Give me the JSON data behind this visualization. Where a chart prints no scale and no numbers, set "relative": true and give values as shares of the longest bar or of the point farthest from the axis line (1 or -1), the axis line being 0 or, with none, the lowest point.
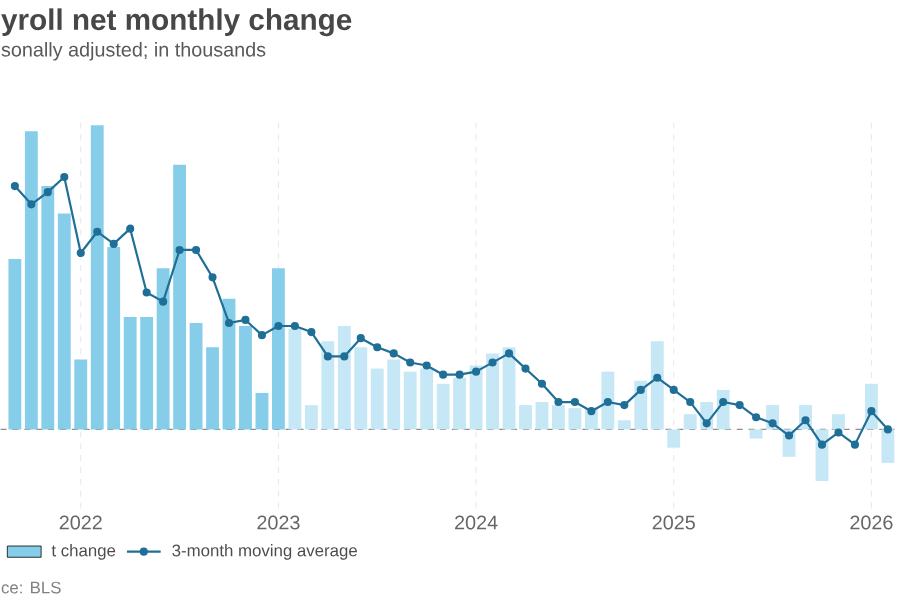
{
  "chart_data": {
    "type": "bar",
    "title": "yroll net monthly change",
    "subtitle": "sonally adjusted; in thousands",
    "annotations": [
      "ce: BLS"
    ],
    "relative": true,
    "grid": "x",
    "ref_lines": [
      {
        "axis": "y",
        "value": 0,
        "color": "#8c8c8c",
        "line_style": "dashed"
      }
    ],
    "legend": "bottom",
    "marker": "circle",
    "xlim": [
      "2021-08-05",
      "2026-02-13"
    ],
    "xticks": [
      {
        "value": "2022-01-01",
        "label": "2022"
      },
      {
        "value": "2023-01-01",
        "label": "2023"
      },
      {
        "value": "2024-01-01",
        "label": "2024"
      },
      {
        "value": "2025-01-01",
        "label": "2025"
      },
      {
        "value": "2026-01-01",
        "label": "2026"
      }
    ],
    "x": [
      "2021-09",
      "2021-10",
      "2021-11",
      "2021-12",
      "2022-01",
      "2022-02",
      "2022-03",
      "2022-04",
      "2022-05",
      "2022-06",
      "2022-07",
      "2022-08",
      "2022-09",
      "2022-10",
      "2022-11",
      "2022-12",
      "2023-01",
      "2023-02",
      "2023-03",
      "2023-04",
      "2023-05",
      "2023-06",
      "2023-07",
      "2023-08",
      "2023-09",
      "2023-10",
      "2023-11",
      "2023-12",
      "2024-01",
      "2024-02",
      "2024-03",
      "2024-04",
      "2024-05",
      "2024-06",
      "2024-07",
      "2024-08",
      "2024-09",
      "2024-10",
      "2024-11",
      "2024-12",
      "2025-01",
      "2025-02",
      "2025-03",
      "2025-04",
      "2025-05",
      "2025-06",
      "2025-07",
      "2025-08",
      "2025-09",
      "2025-10",
      "2025-11",
      "2025-12",
      "2026-01",
      "2026-02"
    ],
    "series": [
      {
        "name": "t change",
        "colors": [
          "#86cdea",
          "#86cdea",
          "#86cdea",
          "#86cdea",
          "#86cdea",
          "#86cdea",
          "#86cdea",
          "#86cdea",
          "#86cdea",
          "#86cdea",
          "#86cdea",
          "#86cdea",
          "#86cdea",
          "#86cdea",
          "#86cdea",
          "#86cdea",
          "#86cdea",
          "#c6e7f5",
          "#c6e7f5",
          "#c6e7f5",
          "#c6e7f5",
          "#c6e7f5",
          "#c6e7f5",
          "#c6e7f5",
          "#c6e7f5",
          "#c6e7f5",
          "#c6e7f5",
          "#c6e7f5",
          "#c6e7f5",
          "#c6e7f5",
          "#c6e7f5",
          "#c6e7f5",
          "#c6e7f5",
          "#c6e7f5",
          "#c6e7f5",
          "#c6e7f5",
          "#c6e7f5",
          "#c6e7f5",
          "#c6e7f5",
          "#c6e7f5",
          "#c6e7f5",
          "#c6e7f5",
          "#c6e7f5",
          "#c6e7f5",
          "#c6e7f5",
          "#c6e7f5",
          "#c6e7f5",
          "#c6e7f5",
          "#c6e7f5",
          "#c6e7f5",
          "#c6e7f5",
          "#c6e7f5",
          "#c6e7f5",
          "#c6e7f5"
        ],
        "values": [
          0.56,
          0.98,
          0.8,
          0.71,
          0.23,
          1.0,
          0.6,
          0.37,
          0.37,
          0.53,
          0.87,
          0.35,
          0.27,
          0.43,
          0.34,
          0.12,
          0.53,
          0.33,
          0.08,
          0.29,
          0.34,
          0.27,
          0.2,
          0.23,
          0.19,
          0.2,
          0.15,
          0.17,
          0.21,
          0.25,
          0.27,
          0.08,
          0.09,
          0.08,
          0.07,
          0.07,
          0.19,
          0.03,
          0.16,
          0.29,
          -0.06,
          0.05,
          0.09,
          0.13,
          null,
          -0.03,
          0.08,
          -0.09,
          0.08,
          -0.17,
          0.05,
          null,
          0.15,
          -0.11
        ]
      },
      {
        "name": "3-month moving average",
        "type": "line",
        "color": "#1f6f96",
        "values": [
          0.8,
          0.74,
          0.78,
          0.83,
          0.58,
          0.65,
          0.61,
          0.66,
          0.45,
          0.42,
          0.59,
          0.59,
          0.5,
          0.35,
          0.36,
          0.31,
          0.34,
          0.34,
          0.32,
          0.24,
          0.24,
          0.3,
          0.27,
          0.25,
          0.22,
          0.21,
          0.18,
          0.18,
          0.19,
          0.22,
          0.25,
          0.2,
          0.15,
          0.09,
          0.09,
          0.06,
          0.09,
          0.08,
          0.13,
          0.17,
          0.13,
          0.09,
          0.02,
          0.09,
          0.08,
          0.04,
          0.02,
          -0.02,
          0.03,
          -0.05,
          -0.01,
          -0.05,
          0.06,
          0.0
        ]
      }
    ]
  }
}
